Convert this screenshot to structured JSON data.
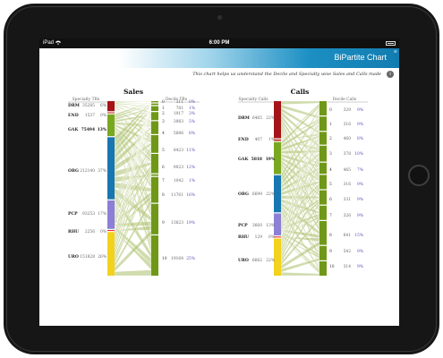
{
  "status_bar": {
    "carrier": "iPad",
    "time": "6:00 PM"
  },
  "app": {
    "title": "BiPartite Chart",
    "corner_mark": "≡",
    "subtitle": "This chart helps us understand the Decile and Specialty wise Sales and Calls made",
    "info_icon": "i"
  },
  "colors": {
    "DRM": "#a41418",
    "END": "#c0392b",
    "GAK": "#79a720",
    "OBG": "#1877b0",
    "PCP": "#8b7fd6",
    "RHU": "#e43030",
    "URO": "#f2d21c",
    "decile_bar": "#6f9818",
    "flow": "#a9c06a",
    "header_bar": "#1c8fc3"
  },
  "chart_data": [
    {
      "type": "bipartite",
      "title": "Sales",
      "left_headers": [
        "Specialty",
        "TRx"
      ],
      "right_headers": [
        "Decile",
        "TRx"
      ],
      "left": [
        {
          "name": "DRM",
          "value": "35285",
          "pct": "6%"
        },
        {
          "name": "END",
          "value": "1537",
          "pct": "0%"
        },
        {
          "name": "GAK",
          "value": "75494",
          "pct": "13%"
        },
        {
          "name": "OBG",
          "value": "212140",
          "pct": "37%"
        },
        {
          "name": "PCP",
          "value": "93253",
          "pct": "17%"
        },
        {
          "name": "RHU",
          "value": "2256",
          "pct": "0%"
        },
        {
          "name": "URO",
          "value": "151828",
          "pct": "26%"
        }
      ],
      "right": [
        {
          "name": "0",
          "value": "311",
          "pct": "0%"
        },
        {
          "name": "1",
          "value": "781",
          "pct": "1%"
        },
        {
          "name": "2",
          "value": "1917",
          "pct": "3%"
        },
        {
          "name": "3",
          "value": "3983",
          "pct": "5%"
        },
        {
          "name": "4",
          "value": "5686",
          "pct": "8%"
        },
        {
          "name": "5",
          "value": "8423",
          "pct": "11%"
        },
        {
          "name": "6",
          "value": "9023",
          "pct": "12%"
        },
        {
          "name": "7",
          "value": "1042",
          "pct": "1%"
        },
        {
          "name": "8",
          "value": "11761",
          "pct": "16%"
        },
        {
          "name": "9",
          "value": "13823",
          "pct": "19%"
        },
        {
          "name": "10",
          "value": "19164",
          "pct": "25%"
        }
      ]
    },
    {
      "type": "bipartite",
      "title": "Calls",
      "left_headers": [
        "Specialty",
        "Calls"
      ],
      "right_headers": [
        "Decile",
        "Calls"
      ],
      "left": [
        {
          "name": "DRM",
          "value": "6465",
          "pct": "22%"
        },
        {
          "name": "END",
          "value": "407",
          "pct": "1%"
        },
        {
          "name": "GAK",
          "value": "5818",
          "pct": "19%"
        },
        {
          "name": "OBG",
          "value": "6699",
          "pct": "22%"
        },
        {
          "name": "PCP",
          "value": "3660",
          "pct": "13%"
        },
        {
          "name": "RHU",
          "value": "129",
          "pct": "0%"
        },
        {
          "name": "URO",
          "value": "6662",
          "pct": "22%"
        }
      ],
      "right": [
        {
          "name": "0",
          "value": "329",
          "pct": "9%"
        },
        {
          "name": "1",
          "value": "316",
          "pct": "9%"
        },
        {
          "name": "2",
          "value": "460",
          "pct": "8%"
        },
        {
          "name": "3",
          "value": "378",
          "pct": "10%"
        },
        {
          "name": "4",
          "value": "465",
          "pct": "7%"
        },
        {
          "name": "5",
          "value": "316",
          "pct": "9%"
        },
        {
          "name": "6",
          "value": "331",
          "pct": "9%"
        },
        {
          "name": "7",
          "value": "326",
          "pct": "9%"
        },
        {
          "name": "8",
          "value": "641",
          "pct": "15%"
        },
        {
          "name": "9",
          "value": "542",
          "pct": "9%"
        },
        {
          "name": "10",
          "value": "314",
          "pct": "9%"
        }
      ]
    }
  ]
}
